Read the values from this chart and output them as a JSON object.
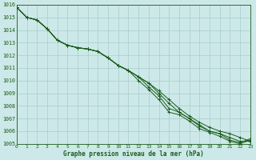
{
  "title": "Graphe pression niveau de la mer (hPa)",
  "bg_color": "#cce8e8",
  "grid_color": "#aacccc",
  "line_color": "#1a5c1a",
  "marker_color": "#1a5c1a",
  "xlim": [
    0,
    23
  ],
  "ylim": [
    1005,
    1016
  ],
  "xticks": [
    0,
    1,
    2,
    3,
    4,
    5,
    6,
    7,
    8,
    9,
    10,
    11,
    12,
    13,
    14,
    15,
    16,
    17,
    18,
    19,
    20,
    21,
    22,
    23
  ],
  "yticks": [
    1005,
    1006,
    1007,
    1008,
    1009,
    1010,
    1011,
    1012,
    1013,
    1014,
    1015,
    1016
  ],
  "series": [
    [
      1015.8,
      1015.0,
      1014.8,
      1014.1,
      1013.2,
      1012.8,
      1012.6,
      1012.5,
      1012.3,
      1011.8,
      1011.2,
      1010.8,
      1010.3,
      1009.8,
      1009.2,
      1008.5,
      1007.8,
      1007.2,
      1006.7,
      1006.3,
      1006.0,
      1005.8,
      1005.5,
      1005.2
    ],
    [
      1015.8,
      1015.0,
      1014.8,
      1014.1,
      1013.2,
      1012.8,
      1012.6,
      1012.5,
      1012.3,
      1011.8,
      1011.2,
      1010.8,
      1010.3,
      1009.8,
      1009.0,
      1008.2,
      1007.5,
      1007.0,
      1006.5,
      1006.0,
      1005.8,
      1005.5,
      1005.2,
      1005.2
    ],
    [
      1015.8,
      1015.0,
      1014.8,
      1014.1,
      1013.2,
      1012.8,
      1012.6,
      1012.5,
      1012.3,
      1011.8,
      1011.2,
      1010.8,
      1010.3,
      1009.5,
      1008.8,
      1007.8,
      1007.5,
      1007.0,
      1006.4,
      1006.0,
      1005.8,
      1005.3,
      1005.1,
      1005.4
    ],
    [
      1015.8,
      1015.0,
      1014.8,
      1014.1,
      1013.2,
      1012.8,
      1012.6,
      1012.5,
      1012.3,
      1011.8,
      1011.2,
      1010.8,
      1010.0,
      1009.3,
      1008.5,
      1007.5,
      1007.3,
      1006.8,
      1006.2,
      1005.9,
      1005.6,
      1005.2,
      1005.0,
      1005.3
    ]
  ],
  "figsize": [
    3.2,
    2.0
  ],
  "dpi": 100
}
